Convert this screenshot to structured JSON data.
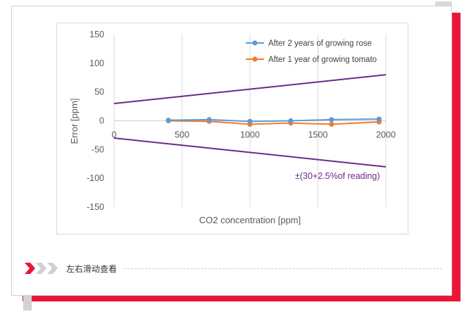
{
  "page": {
    "swipe_hint": "左右滑动查看"
  },
  "colors": {
    "frame_red": "#e8173a",
    "series_blue": "#5b9bd5",
    "series_orange": "#ed7d31",
    "limit_purple": "#6a2a8a",
    "grid": "#d9d9d9"
  },
  "chart_data": {
    "type": "line",
    "xlabel": "CO2 concentration [ppm]",
    "ylabel": "Error [ppm]",
    "xlim": [
      0,
      2000
    ],
    "ylim": [
      -150,
      150
    ],
    "xticks": [
      0,
      500,
      1000,
      1500,
      2000
    ],
    "yticks": [
      150,
      100,
      50,
      0,
      -50,
      -100,
      -150
    ],
    "grid": "vertical",
    "legend_position": "top-right",
    "series": [
      {
        "name": "After 2 years of growing rose",
        "color": "#5b9bd5",
        "x": [
          400,
          700,
          1000,
          1300,
          1600,
          1950
        ],
        "y": [
          1,
          2,
          -1,
          0,
          2,
          3
        ]
      },
      {
        "name": "After 1 year of growing tomato",
        "color": "#ed7d31",
        "x": [
          400,
          700,
          1000,
          1300,
          1600,
          1950
        ],
        "y": [
          0,
          -1,
          -6,
          -4,
          -6,
          -2
        ]
      }
    ],
    "limit_lines": {
      "color": "#6a2a8a",
      "upper": {
        "x": [
          0,
          2000
        ],
        "y": [
          30,
          80
        ]
      },
      "lower": {
        "x": [
          0,
          2000
        ],
        "y": [
          -30,
          -80
        ]
      }
    },
    "annotation": "±(30+2.5%of reading)"
  }
}
